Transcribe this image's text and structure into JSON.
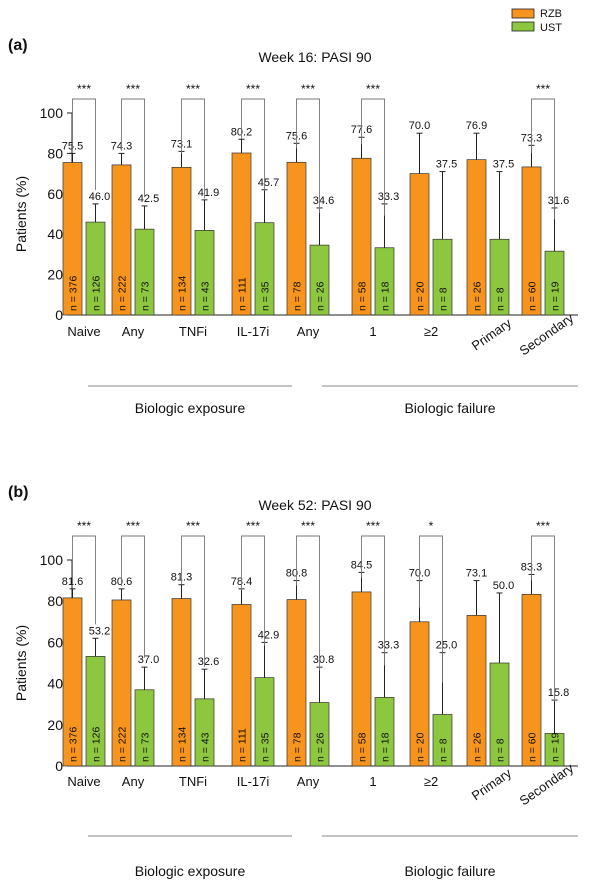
{
  "legend": [
    {
      "label": "RZB",
      "color": "#f7941d"
    },
    {
      "label": "UST",
      "color": "#8dc63f"
    }
  ],
  "chart_data": [
    {
      "type": "bar",
      "panel_label": "(a)",
      "title": "Week 16: PASI 90",
      "ylabel": "Patients (%)",
      "ylim": [
        0,
        100
      ],
      "yticks": [
        "0",
        "20",
        "40",
        "60",
        "80",
        "100"
      ],
      "categories": [
        "Naive",
        "Any",
        "TNFi",
        "IL-17i",
        "Any",
        "1",
        "≥2",
        "Primary",
        "Secondary"
      ],
      "groups": [
        "Biologic exposure",
        "Biologic failure"
      ],
      "series": [
        {
          "name": "RZB",
          "values": [
            75.5,
            74.3,
            73.1,
            80.2,
            75.6,
            77.6,
            70.0,
            76.9,
            73.3
          ],
          "value_labels": [
            "75.5",
            "74.3",
            "73.1",
            "80.2",
            "75.6",
            "77.6",
            "70.0",
            "76.9",
            "73.3"
          ],
          "error_upper": [
            80,
            80,
            81,
            87,
            85,
            88,
            90,
            90,
            84
          ],
          "n_labels": [
            "n = 376",
            "n = 222",
            "n = 134",
            "n = 111",
            "n = 78",
            "n = 58",
            "n = 20",
            "n = 26",
            "n = 60"
          ]
        },
        {
          "name": "UST",
          "values": [
            46.0,
            42.5,
            41.9,
            45.7,
            34.6,
            33.3,
            37.5,
            37.5,
            31.6
          ],
          "value_labels": [
            "46.0",
            "42.5",
            "41.9",
            "45.7",
            "34.6",
            "33.3",
            "37.5",
            "37.5",
            "31.6"
          ],
          "error_upper": [
            55,
            54,
            57,
            62,
            53,
            55,
            71,
            71,
            53
          ],
          "n_labels": [
            "n = 126",
            "n = 73",
            "n = 43",
            "n = 35",
            "n = 26",
            "n = 18",
            "n = 8",
            "n = 8",
            "n = 19"
          ]
        }
      ],
      "significance": [
        "***",
        "***",
        "***",
        "***",
        "***",
        "***",
        "",
        "",
        "***"
      ]
    },
    {
      "type": "bar",
      "panel_label": "(b)",
      "title": "Week 52: PASI 90",
      "ylabel": "Patients (%)",
      "ylim": [
        0,
        100
      ],
      "yticks": [
        "0",
        "20",
        "40",
        "60",
        "80",
        "100"
      ],
      "categories": [
        "Naive",
        "Any",
        "TNFi",
        "IL-17i",
        "Any",
        "1",
        "≥2",
        "Primary",
        "Secondary"
      ],
      "groups": [
        "Biologic exposure",
        "Biologic failure"
      ],
      "series": [
        {
          "name": "RZB",
          "values": [
            81.6,
            80.6,
            81.3,
            78.4,
            80.8,
            84.5,
            70.0,
            73.1,
            83.3
          ],
          "value_labels": [
            "81.6",
            "80.6",
            "81.3",
            "78.4",
            "80.8",
            "84.5",
            "70.0",
            "73.1",
            "83.3"
          ],
          "error_upper": [
            86,
            86,
            88,
            86,
            90,
            94,
            90,
            90,
            93
          ],
          "n_labels": [
            "n = 376",
            "n = 222",
            "n = 134",
            "n = 111",
            "n = 78",
            "n = 58",
            "n = 20",
            "n = 26",
            "n = 60"
          ]
        },
        {
          "name": "UST",
          "values": [
            53.2,
            37.0,
            32.6,
            42.9,
            30.8,
            33.3,
            25.0,
            50.0,
            15.8
          ],
          "value_labels": [
            "53.2",
            "37.0",
            "32.6",
            "42.9",
            "30.8",
            "33.3",
            "25.0",
            "50.0",
            "15.8"
          ],
          "error_upper": [
            62,
            48,
            47,
            60,
            48,
            55,
            55,
            84,
            32
          ],
          "n_labels": [
            "n = 126",
            "n = 73",
            "n = 43",
            "n = 35",
            "n = 26",
            "n = 18",
            "n = 8",
            "n = 8",
            "n = 19"
          ]
        }
      ],
      "significance": [
        "***",
        "***",
        "***",
        "***",
        "***",
        "***",
        "*",
        "",
        "***"
      ]
    }
  ]
}
